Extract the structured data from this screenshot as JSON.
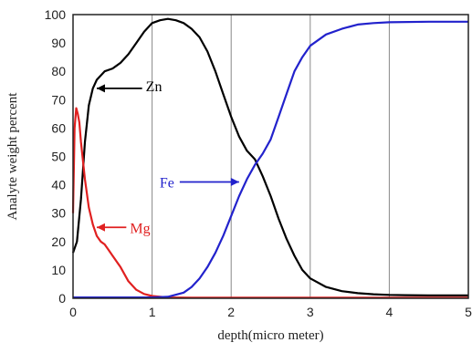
{
  "chart_data": {
    "type": "line",
    "xlabel": "depth(micro meter)",
    "ylabel": "Analyte weight percent",
    "xlim": [
      0,
      5
    ],
    "ylim": [
      0,
      100
    ],
    "x_ticks": [
      "0",
      "1",
      "2",
      "3",
      "4",
      "5"
    ],
    "y_ticks": [
      "0",
      "10",
      "20",
      "30",
      "40",
      "50",
      "60",
      "70",
      "80",
      "90",
      "100"
    ],
    "grid": "vertical",
    "series": [
      {
        "name": "Zn",
        "color": "#000000",
        "x": [
          0.0,
          0.05,
          0.1,
          0.15,
          0.2,
          0.25,
          0.3,
          0.4,
          0.5,
          0.6,
          0.7,
          0.8,
          0.9,
          1.0,
          1.1,
          1.2,
          1.3,
          1.4,
          1.5,
          1.6,
          1.7,
          1.8,
          1.9,
          2.0,
          2.1,
          2.2,
          2.3,
          2.4,
          2.5,
          2.6,
          2.7,
          2.8,
          2.9,
          3.0,
          3.2,
          3.4,
          3.6,
          3.8,
          4.0,
          4.2,
          4.5,
          5.0
        ],
        "y": [
          16,
          20,
          35,
          55,
          68,
          74,
          77,
          80,
          81,
          83,
          86,
          90,
          94,
          97,
          98,
          98.5,
          98,
          97,
          95,
          92,
          87,
          80,
          72,
          64,
          57,
          52,
          49,
          43,
          36,
          28,
          21,
          15,
          10,
          7,
          4,
          2.5,
          1.8,
          1.4,
          1.2,
          1.1,
          1.0,
          1.0
        ]
      },
      {
        "name": "Mg",
        "color": "#e02020",
        "x": [
          0.0,
          0.02,
          0.04,
          0.06,
          0.08,
          0.1,
          0.15,
          0.2,
          0.25,
          0.3,
          0.35,
          0.4,
          0.45,
          0.5,
          0.6,
          0.7,
          0.8,
          0.9,
          1.0,
          1.1,
          1.2,
          1.5,
          2.0,
          3.0,
          4.0,
          5.0
        ],
        "y": [
          30,
          60,
          67,
          65,
          62,
          55,
          42,
          32,
          26,
          22,
          20,
          19,
          17,
          15,
          11,
          6,
          3,
          1.5,
          0.8,
          0.5,
          0.3,
          0.2,
          0.2,
          0.2,
          0.2,
          0.2
        ]
      },
      {
        "name": "Fe",
        "color": "#2222cc",
        "x": [
          0.0,
          0.5,
          1.0,
          1.2,
          1.4,
          1.5,
          1.6,
          1.7,
          1.8,
          1.9,
          2.0,
          2.1,
          2.2,
          2.3,
          2.4,
          2.5,
          2.6,
          2.7,
          2.8,
          2.9,
          3.0,
          3.2,
          3.4,
          3.6,
          3.8,
          4.0,
          4.5,
          5.0
        ],
        "y": [
          0.3,
          0.3,
          0.3,
          0.5,
          2,
          4,
          7,
          11,
          16,
          22,
          29,
          36,
          42,
          47,
          51,
          56,
          64,
          72,
          80,
          85,
          89,
          93,
          95,
          96.5,
          97,
          97.3,
          97.5,
          97.5
        ]
      }
    ],
    "annotations": [
      {
        "label": "Zn",
        "color": "#000000",
        "text_at": [
          0.92,
          75
        ],
        "arrow_to": [
          0.3,
          74
        ]
      },
      {
        "label": "Mg",
        "color": "#e02020",
        "text_at": [
          0.72,
          25
        ],
        "arrow_to": [
          0.3,
          25
        ]
      },
      {
        "label": "Fe",
        "color": "#2222cc",
        "text_at": [
          1.28,
          41
        ],
        "arrow_to": [
          2.1,
          41
        ]
      }
    ]
  }
}
